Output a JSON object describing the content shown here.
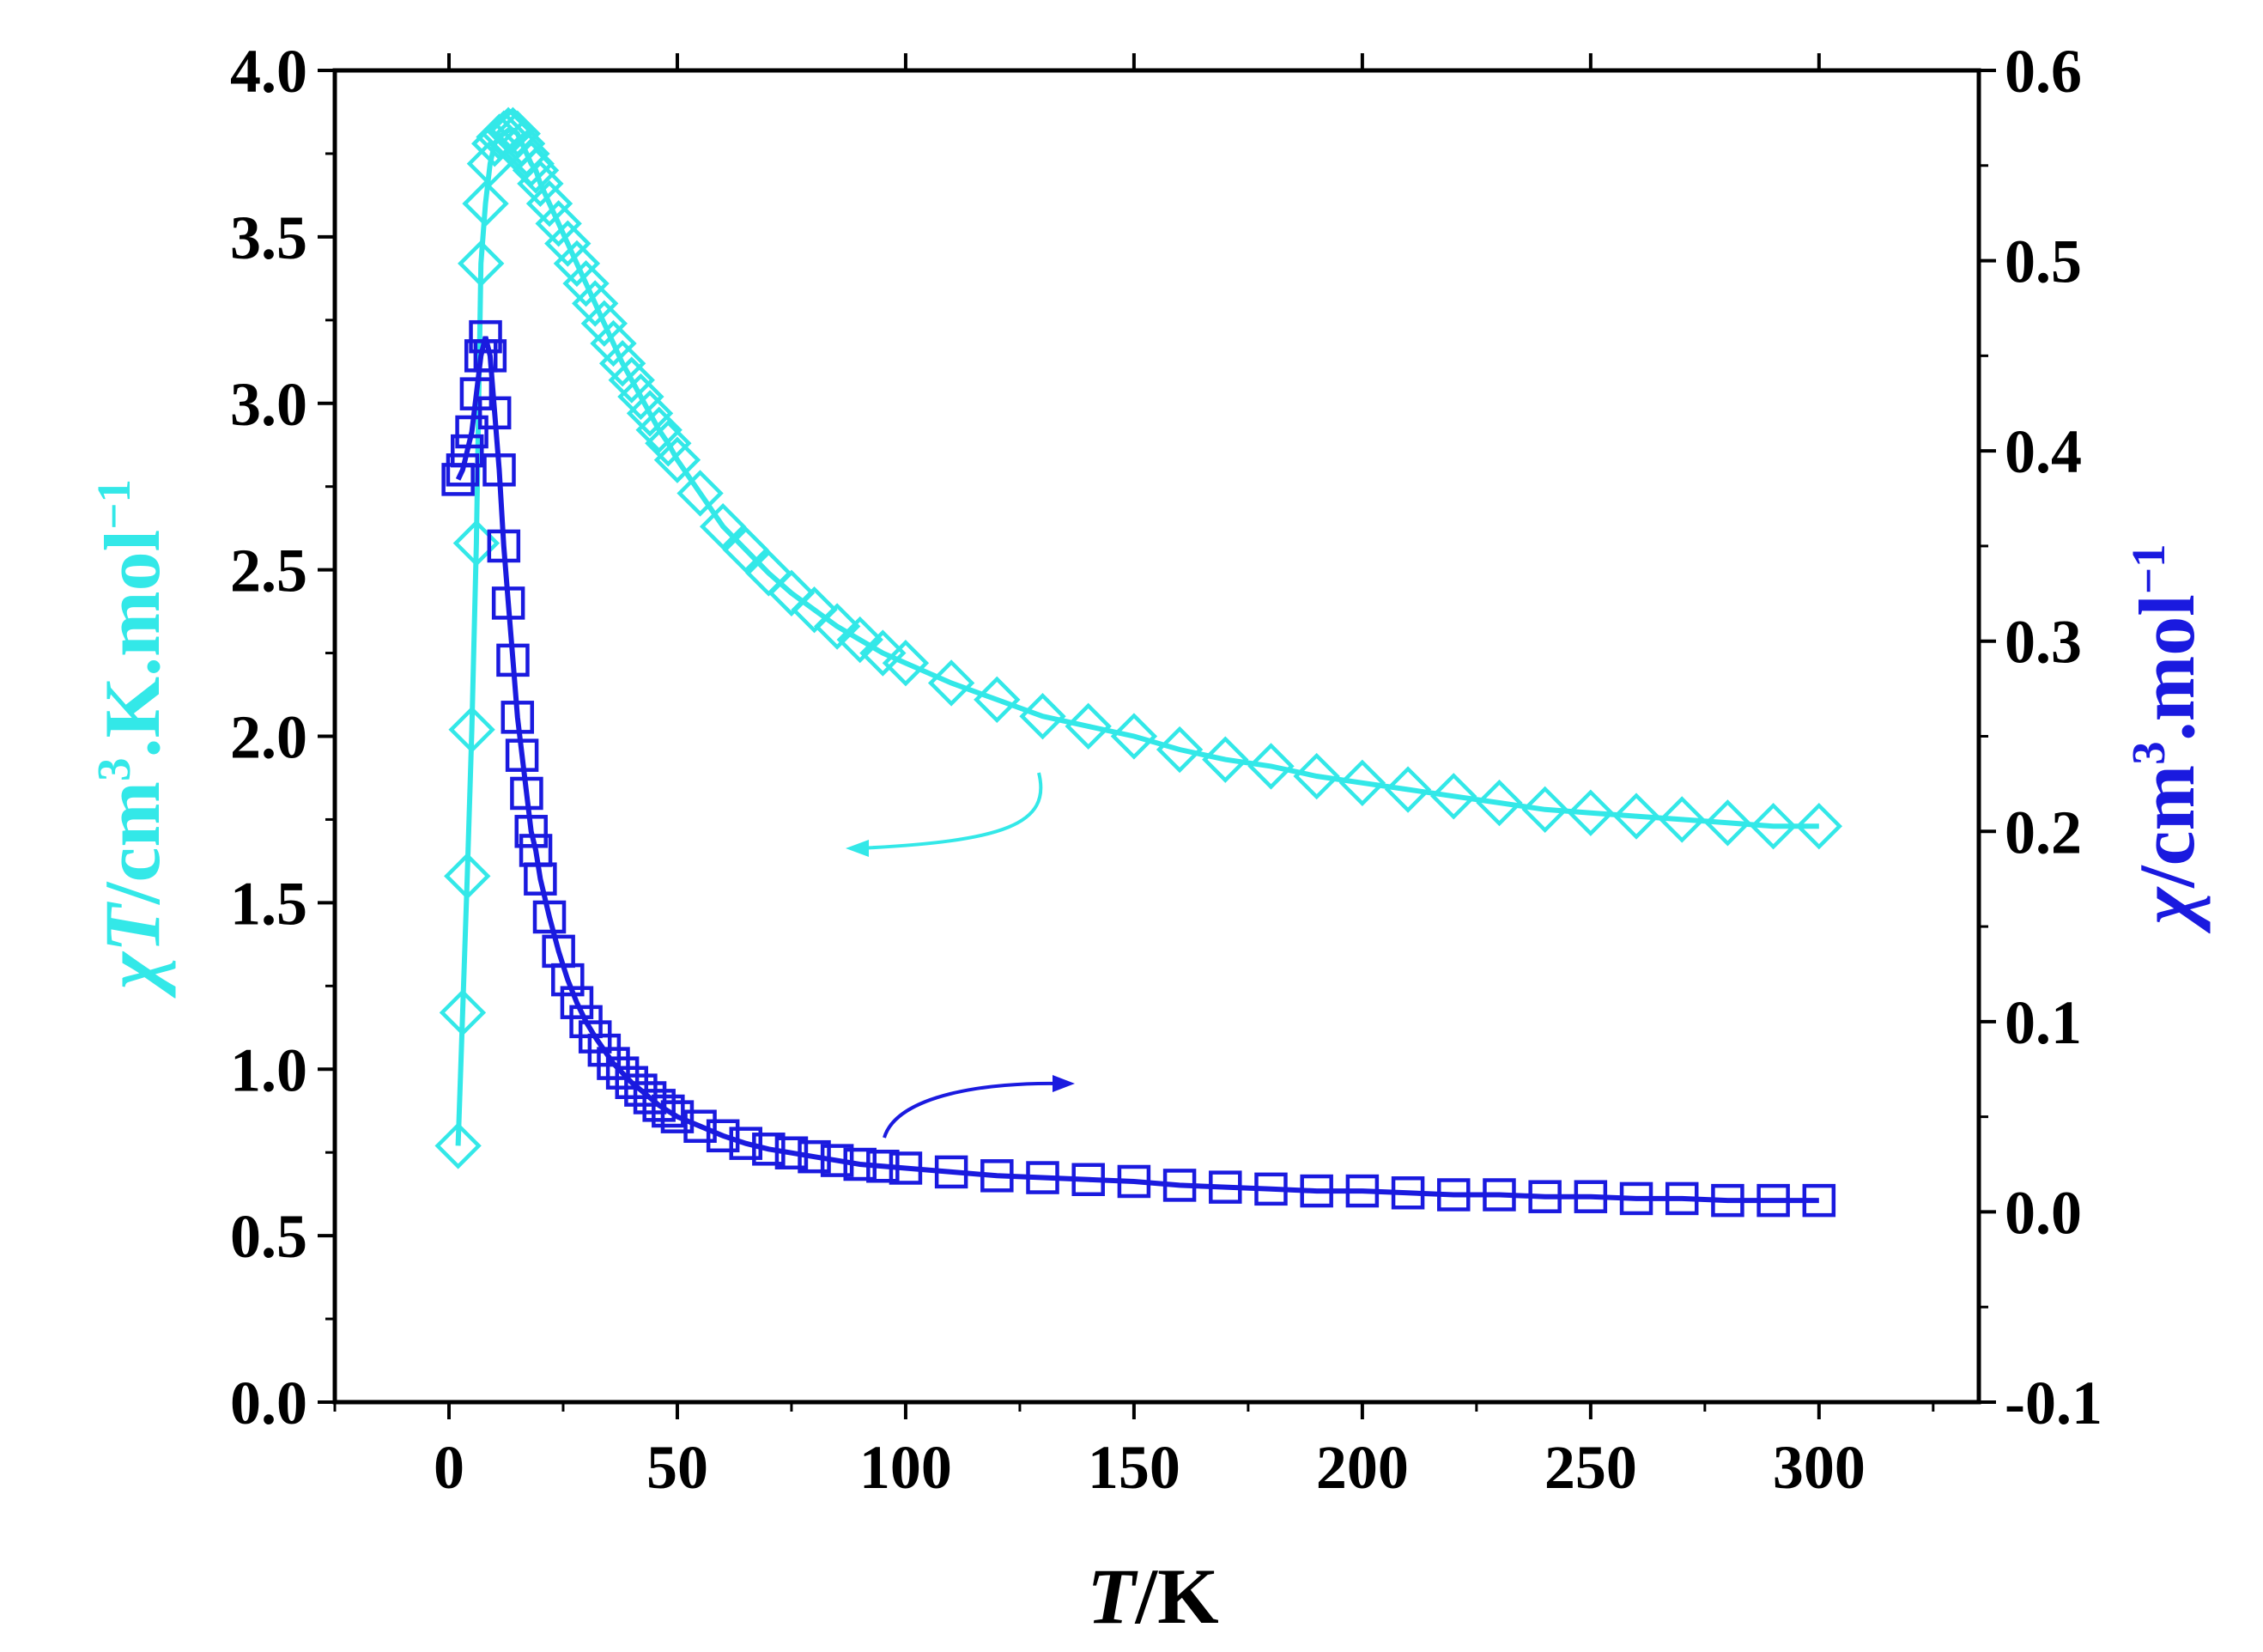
{
  "chart_data": {
    "type": "scatter",
    "xlabel": {
      "italic": "T",
      "rest": "/K"
    },
    "ylabel_left": {
      "symbol": "χ",
      "italic": "T",
      "unit": "/cm",
      "sup": "3",
      "after": ".K.mol",
      "sup2": "−1"
    },
    "ylabel_right": {
      "symbol": "χ",
      "unit": "/cm",
      "sup": "3",
      "after": ".mol",
      "sup2": "−1"
    },
    "xlim": [
      -25,
      335
    ],
    "ylim_left": [
      0.0,
      4.0
    ],
    "ylim_right": [
      -0.1,
      0.6
    ],
    "x_ticks": [
      "0",
      "50",
      "100",
      "150",
      "200",
      "250",
      "300"
    ],
    "y_left_ticks": [
      "0.0",
      "0.5",
      "1.0",
      "1.5",
      "2.0",
      "2.5",
      "3.0",
      "3.5",
      "4.0"
    ],
    "y_right_ticks": [
      "-0.1",
      "0.0",
      "0.1",
      "0.2",
      "0.3",
      "0.4",
      "0.5",
      "0.6"
    ],
    "colors": {
      "chiT": "#33e8e8",
      "chi": "#1a1adf",
      "axis": "#000000"
    },
    "series": [
      {
        "name": "chiT",
        "axis": "left",
        "marker": "diamond",
        "x": [
          2,
          3,
          4,
          5,
          6,
          7,
          8,
          9,
          10,
          11,
          12,
          13,
          14,
          15,
          16,
          17,
          18,
          19,
          20,
          22,
          24,
          26,
          28,
          30,
          32,
          34,
          36,
          38,
          40,
          42,
          44,
          46,
          48,
          50,
          55,
          60,
          65,
          70,
          75,
          80,
          85,
          90,
          95,
          100,
          110,
          120,
          130,
          140,
          150,
          160,
          170,
          180,
          190,
          200,
          210,
          220,
          230,
          240,
          250,
          260,
          270,
          280,
          290,
          300
        ],
        "values": [
          0.77,
          1.17,
          1.58,
          2.02,
          2.58,
          3.42,
          3.6,
          3.72,
          3.78,
          3.8,
          3.81,
          3.82,
          3.82,
          3.81,
          3.78,
          3.75,
          3.72,
          3.7,
          3.66,
          3.6,
          3.54,
          3.48,
          3.42,
          3.36,
          3.3,
          3.24,
          3.18,
          3.12,
          3.07,
          3.02,
          2.97,
          2.92,
          2.88,
          2.83,
          2.73,
          2.63,
          2.56,
          2.49,
          2.43,
          2.38,
          2.33,
          2.29,
          2.25,
          2.22,
          2.16,
          2.11,
          2.06,
          2.03,
          2.0,
          1.96,
          1.93,
          1.91,
          1.88,
          1.86,
          1.84,
          1.82,
          1.8,
          1.78,
          1.77,
          1.76,
          1.75,
          1.74,
          1.73,
          1.73
        ]
      },
      {
        "name": "chi",
        "axis": "right",
        "marker": "square",
        "x": [
          2,
          3,
          4,
          5,
          6,
          7,
          8,
          9,
          10,
          11,
          12,
          13,
          14,
          15,
          16,
          17,
          18,
          19,
          20,
          22,
          24,
          26,
          28,
          30,
          32,
          34,
          36,
          38,
          40,
          42,
          44,
          46,
          48,
          50,
          55,
          60,
          65,
          70,
          75,
          80,
          85,
          90,
          95,
          100,
          110,
          120,
          130,
          140,
          150,
          160,
          170,
          180,
          190,
          200,
          210,
          220,
          230,
          240,
          250,
          260,
          270,
          280,
          290,
          300
        ],
        "values": [
          0.385,
          0.39,
          0.4,
          0.41,
          0.43,
          0.45,
          0.46,
          0.45,
          0.42,
          0.39,
          0.35,
          0.32,
          0.29,
          0.26,
          0.24,
          0.22,
          0.2,
          0.19,
          0.175,
          0.155,
          0.137,
          0.122,
          0.11,
          0.1,
          0.092,
          0.085,
          0.078,
          0.073,
          0.068,
          0.064,
          0.06,
          0.056,
          0.053,
          0.05,
          0.045,
          0.04,
          0.036,
          0.033,
          0.031,
          0.029,
          0.027,
          0.025,
          0.024,
          0.023,
          0.021,
          0.019,
          0.018,
          0.017,
          0.016,
          0.014,
          0.013,
          0.012,
          0.011,
          0.011,
          0.01,
          0.009,
          0.009,
          0.008,
          0.008,
          0.007,
          0.007,
          0.006,
          0.006,
          0.006
        ]
      }
    ],
    "annotations": [
      {
        "name": "arrow-chiT-left",
        "points_to": "left axis"
      },
      {
        "name": "arrow-chi-right",
        "points_to": "right axis"
      }
    ]
  }
}
